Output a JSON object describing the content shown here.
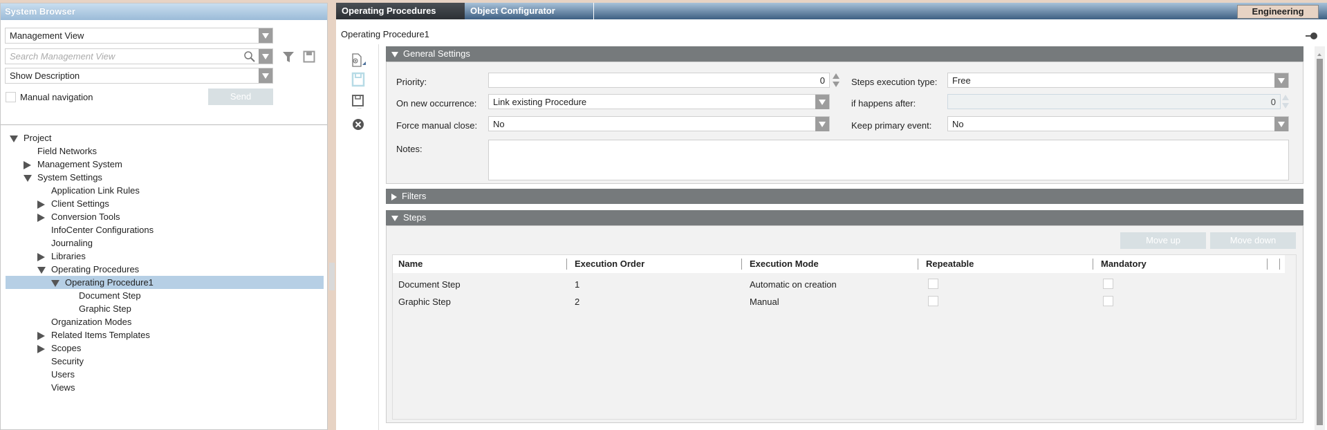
{
  "sidebar": {
    "title": "System Browser",
    "view_select": "Management View",
    "search_placeholder": "Search Management View",
    "description_select": "Show Description",
    "manual_navigation_label": "Manual navigation",
    "manual_navigation_checked": false,
    "send_label": "Send",
    "tree": [
      {
        "label": "Project",
        "level": 0,
        "expander": "expanded"
      },
      {
        "label": "Field Networks",
        "level": 1,
        "expander": "none"
      },
      {
        "label": "Management System",
        "level": 1,
        "expander": "collapsed"
      },
      {
        "label": "System Settings",
        "level": 1,
        "expander": "expanded"
      },
      {
        "label": "Application Link Rules",
        "level": 2,
        "expander": "none"
      },
      {
        "label": "Client Settings",
        "level": 2,
        "expander": "collapsed"
      },
      {
        "label": "Conversion Tools",
        "level": 2,
        "expander": "collapsed"
      },
      {
        "label": "InfoCenter Configurations",
        "level": 2,
        "expander": "none"
      },
      {
        "label": "Journaling",
        "level": 2,
        "expander": "none"
      },
      {
        "label": "Libraries",
        "level": 2,
        "expander": "collapsed"
      },
      {
        "label": "Operating Procedures",
        "level": 2,
        "expander": "expanded"
      },
      {
        "label": "Operating Procedure1",
        "level": 3,
        "expander": "expanded",
        "selected": true
      },
      {
        "label": "Document Step",
        "level": 4,
        "expander": "none"
      },
      {
        "label": "Graphic Step",
        "level": 4,
        "expander": "none"
      },
      {
        "label": "Organization Modes",
        "level": 2,
        "expander": "none"
      },
      {
        "label": "Related Items Templates",
        "level": 2,
        "expander": "collapsed"
      },
      {
        "label": "Scopes",
        "level": 2,
        "expander": "collapsed"
      },
      {
        "label": "Security",
        "level": 2,
        "expander": "none"
      },
      {
        "label": "Users",
        "level": 2,
        "expander": "none"
      },
      {
        "label": "Views",
        "level": 2,
        "expander": "none"
      }
    ]
  },
  "main": {
    "tabs": [
      {
        "label": "Operating Procedures",
        "active": true
      },
      {
        "label": "Object Configurator",
        "active": false
      }
    ],
    "mode_button": "Engineering",
    "object_title": "Operating Procedure1",
    "general": {
      "title": "General Settings",
      "priority_label": "Priority:",
      "priority_value": "0",
      "on_new_occurrence_label": "On new occurrence:",
      "on_new_occurrence_value": "Link existing Procedure",
      "force_manual_close_label": "Force manual close:",
      "force_manual_close_value": "No",
      "notes_label": "Notes:",
      "notes_value": "",
      "steps_execution_type_label": "Steps execution type:",
      "steps_execution_type_value": "Free",
      "if_happens_after_label": "if happens after:",
      "if_happens_after_value": "0",
      "keep_primary_event_label": "Keep primary event:",
      "keep_primary_event_value": "No"
    },
    "filters": {
      "title": "Filters"
    },
    "steps": {
      "title": "Steps",
      "move_up_label": "Move up",
      "move_down_label": "Move down",
      "columns": [
        "Name",
        "Execution Order",
        "Execution Mode",
        "Repeatable",
        "Mandatory"
      ],
      "rows": [
        {
          "name": "Document Step",
          "order": "1",
          "mode": "Automatic on creation",
          "repeatable": false,
          "mandatory": false
        },
        {
          "name": "Graphic Step",
          "order": "2",
          "mode": "Manual",
          "repeatable": false,
          "mandatory": false
        }
      ]
    }
  },
  "colors": {
    "selection": "#b6cfe5",
    "section_header": "#767a7c",
    "tab_bar": "#3e5f82",
    "engineering_button": "#e7d3c4"
  }
}
